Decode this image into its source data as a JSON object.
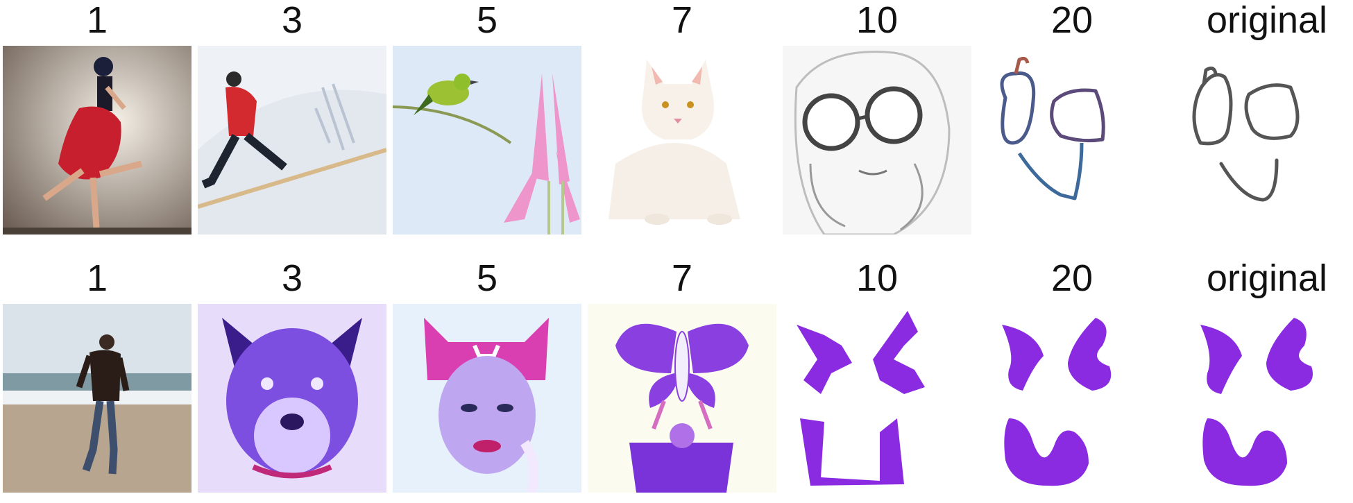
{
  "rows": [
    {
      "labels": [
        "1",
        "3",
        "5",
        "7",
        "10",
        "20",
        "original"
      ],
      "tiles": [
        "dancer-red-dress",
        "man-running-in-snow",
        "bird-on-branch-with-flowers",
        "white-cat",
        "woman-with-glasses-sketch",
        "face-doodle-colored",
        "face-doodle-original"
      ]
    },
    {
      "labels": [
        "1",
        "3",
        "5",
        "7",
        "10",
        "20",
        "original"
      ],
      "tiles": [
        "man-running-on-beach",
        "purple-dog",
        "woman-with-cat-ear-hat",
        "purple-butterfly-figure",
        "purple-shapes-rough",
        "purple-shapes-smooth",
        "purple-shapes-original"
      ]
    }
  ],
  "colors": {
    "purple": "#8a2be2",
    "pink": "#e040c0",
    "red": "#d42b3a"
  }
}
